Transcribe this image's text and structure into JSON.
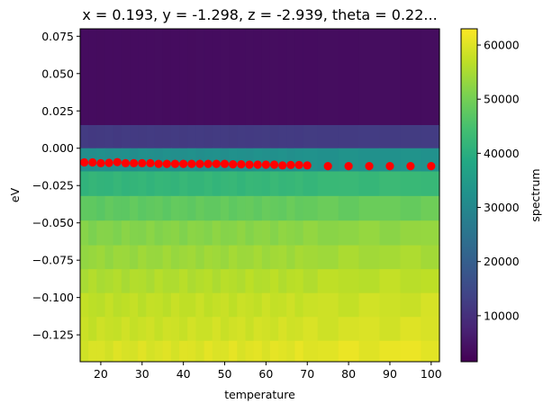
{
  "chart_data": {
    "type": "heatmap",
    "title": "x = 0.193, y = -1.298, z = -2.939, theta = 0.22...",
    "xlabel": "temperature",
    "ylabel": "eV",
    "xlim": [
      15,
      102
    ],
    "ylim": [
      -0.143,
      0.08
    ],
    "xticks": [
      20,
      30,
      40,
      50,
      60,
      70,
      80,
      90,
      100
    ],
    "yticks": [
      -0.125,
      -0.1,
      -0.075,
      -0.05,
      -0.025,
      0.0,
      0.025,
      0.05,
      0.075
    ],
    "ytick_labels": [
      "−0.125",
      "−0.100",
      "−0.075",
      "−0.050",
      "−0.025",
      "0.000",
      "0.025",
      "0.050",
      "0.075"
    ],
    "colorbar": {
      "label": "spectrum",
      "range": [
        1500,
        63000
      ],
      "ticks": [
        10000,
        20000,
        30000,
        40000,
        50000,
        60000
      ],
      "colormap": "viridis"
    },
    "heatmap": {
      "temperatures": [
        16,
        18,
        20,
        22,
        24,
        26,
        28,
        30,
        32,
        34,
        36,
        38,
        40,
        42,
        44,
        46,
        48,
        50,
        52,
        54,
        56,
        58,
        60,
        62,
        64,
        66,
        68,
        70,
        75,
        80,
        85,
        90,
        95,
        100
      ],
      "energy_edges": [
        0.08,
        0.0155,
        0.0,
        -0.0155,
        -0.032,
        -0.0485,
        -0.065,
        -0.081,
        -0.097,
        -0.113,
        -0.129,
        -0.143
      ],
      "row_values": [
        3500,
        12000,
        32000,
        42000,
        48000,
        52000,
        54000,
        56000,
        57500,
        58500,
        60000
      ],
      "temperature_trend": 0.03
    },
    "series": [
      {
        "type": "scatter",
        "color": "#ff0000",
        "x": [
          16,
          18,
          20,
          22,
          24,
          26,
          28,
          30,
          32,
          34,
          36,
          38,
          40,
          42,
          44,
          46,
          48,
          50,
          52,
          54,
          56,
          58,
          60,
          62,
          64,
          66,
          68,
          70,
          75,
          80,
          85,
          90,
          95,
          100
        ],
        "y": [
          -0.0095,
          -0.0095,
          -0.01,
          -0.0098,
          -0.0093,
          -0.01,
          -0.01,
          -0.01,
          -0.01,
          -0.0105,
          -0.0105,
          -0.0105,
          -0.0105,
          -0.0105,
          -0.0105,
          -0.0105,
          -0.0105,
          -0.0105,
          -0.0108,
          -0.0108,
          -0.011,
          -0.011,
          -0.011,
          -0.011,
          -0.0115,
          -0.0112,
          -0.0112,
          -0.0115,
          -0.012,
          -0.012,
          -0.012,
          -0.012,
          -0.012,
          -0.012
        ]
      }
    ]
  }
}
